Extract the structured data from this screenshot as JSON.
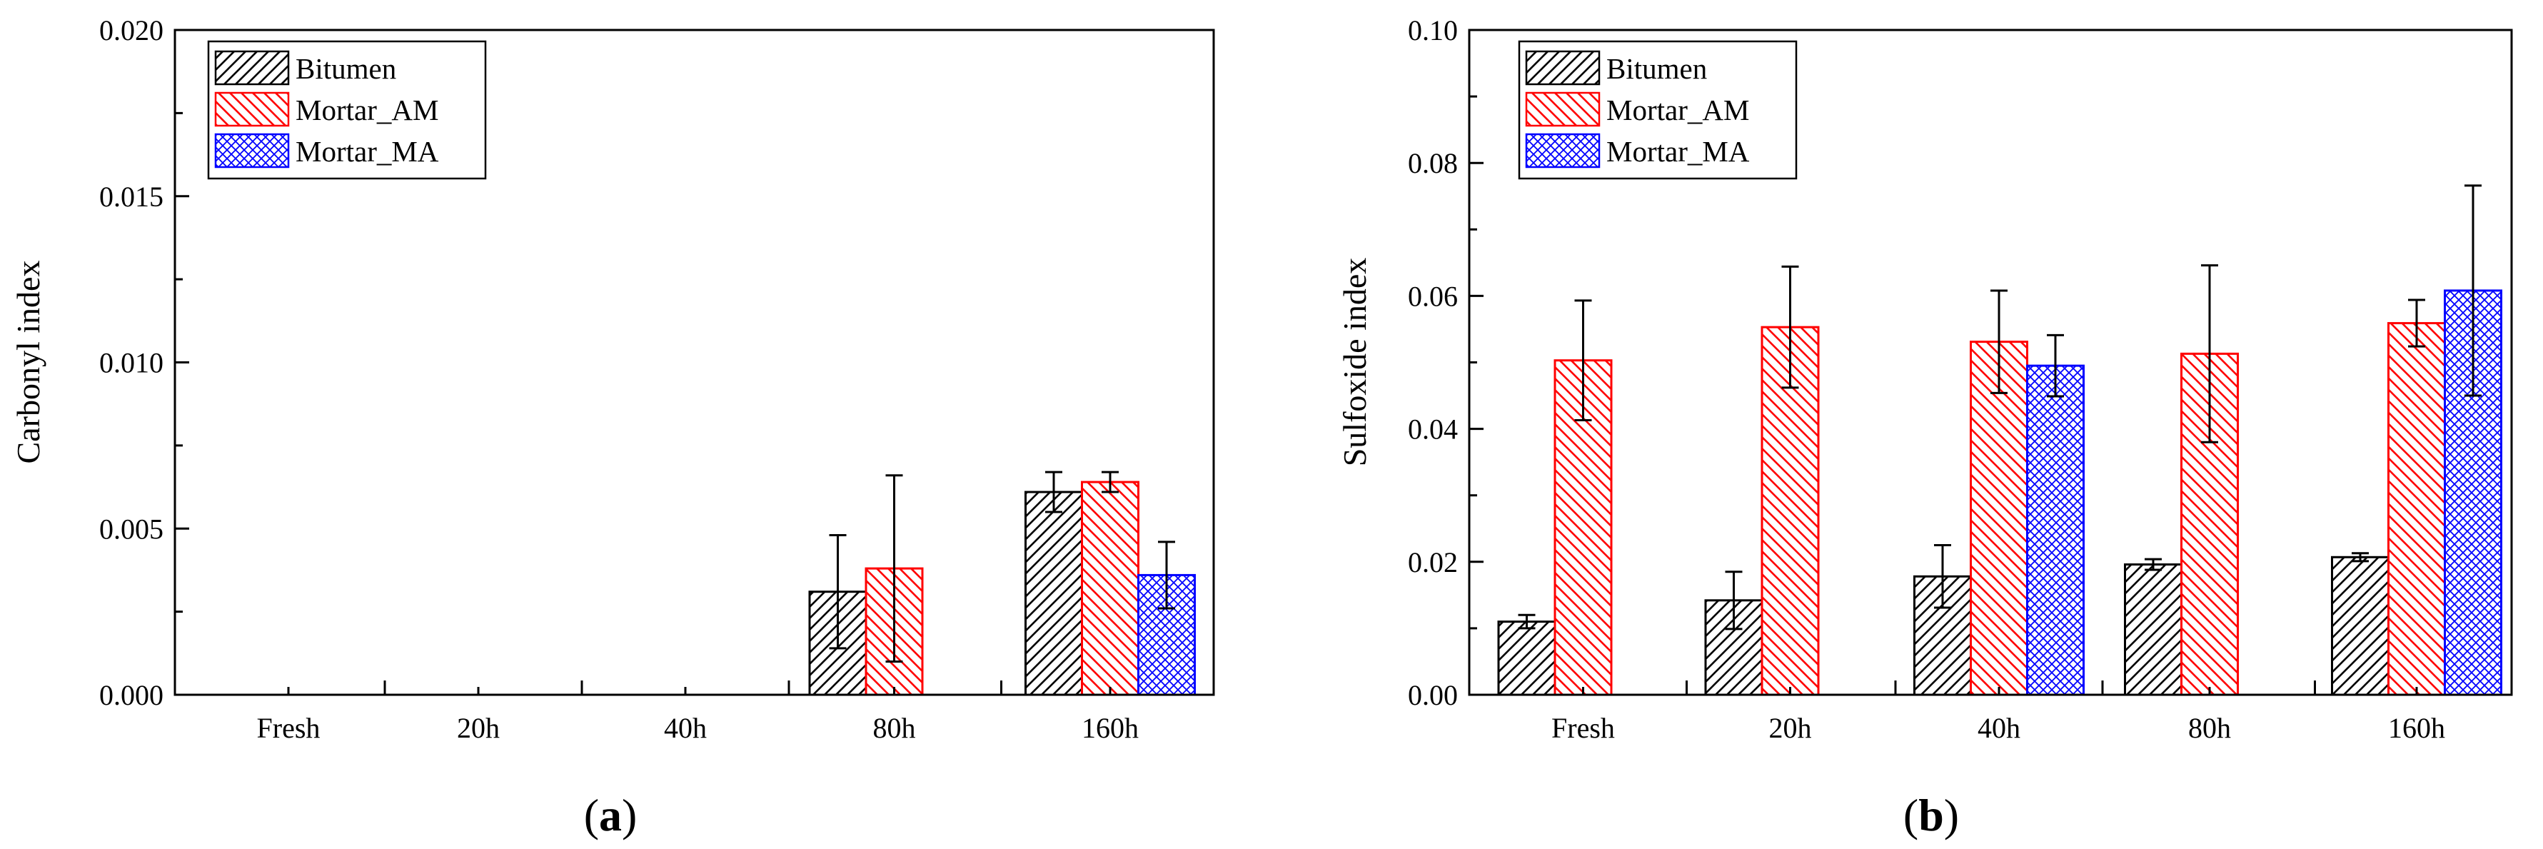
{
  "colors": {
    "bitumen": "#000000",
    "mortar_am": "#ff0000",
    "mortar_ma": "#0000ff",
    "axis": "#000000"
  },
  "chart_data": [
    {
      "type": "bar",
      "panel_label": "a",
      "xlabel": "",
      "ylabel": "Carbonyl index",
      "ylim": [
        0,
        0.02
      ],
      "yticks": [
        "0.000",
        "0.005",
        "0.010",
        "0.015",
        "0.020"
      ],
      "categories": [
        "Fresh",
        "20h",
        "40h",
        "80h",
        "160h"
      ],
      "legend": {
        "position": "top-left",
        "entries": [
          "Bitumen",
          "Mortar_AM",
          "Mortar_MA"
        ]
      },
      "series": [
        {
          "name": "Bitumen",
          "values": [
            null,
            null,
            null,
            0.0031,
            0.0061
          ],
          "errors": [
            null,
            null,
            null,
            0.0017,
            0.0006
          ]
        },
        {
          "name": "Mortar_AM",
          "values": [
            null,
            null,
            null,
            0.0038,
            0.0064
          ],
          "errors": [
            null,
            null,
            null,
            0.0028,
            0.0003
          ]
        },
        {
          "name": "Mortar_MA",
          "values": [
            null,
            null,
            null,
            null,
            0.0036
          ],
          "errors": [
            null,
            null,
            null,
            null,
            0.001
          ]
        }
      ]
    },
    {
      "type": "bar",
      "panel_label": "b",
      "xlabel": "",
      "ylabel": "Sulfoxide index",
      "ylim": [
        0,
        0.1
      ],
      "yticks": [
        "0.00",
        "0.02",
        "0.04",
        "0.06",
        "0.08",
        "0.10"
      ],
      "categories": [
        "Fresh",
        "20h",
        "40h",
        "80h",
        "160h"
      ],
      "legend": {
        "position": "top-left",
        "entries": [
          "Bitumen",
          "Mortar_AM",
          "Mortar_MA"
        ]
      },
      "series": [
        {
          "name": "Bitumen",
          "values": [
            0.011,
            0.0142,
            0.0178,
            0.0196,
            0.0207
          ],
          "errors": [
            0.001,
            0.0043,
            0.0047,
            0.0008,
            0.0006
          ]
        },
        {
          "name": "Mortar_AM",
          "values": [
            0.0503,
            0.0553,
            0.0531,
            0.0513,
            0.0559
          ],
          "errors": [
            0.009,
            0.0091,
            0.0077,
            0.0133,
            0.0035
          ]
        },
        {
          "name": "Mortar_MA",
          "values": [
            null,
            null,
            0.0495,
            null,
            0.0608
          ],
          "errors": [
            null,
            null,
            0.0046,
            null,
            0.0158
          ]
        }
      ]
    }
  ]
}
